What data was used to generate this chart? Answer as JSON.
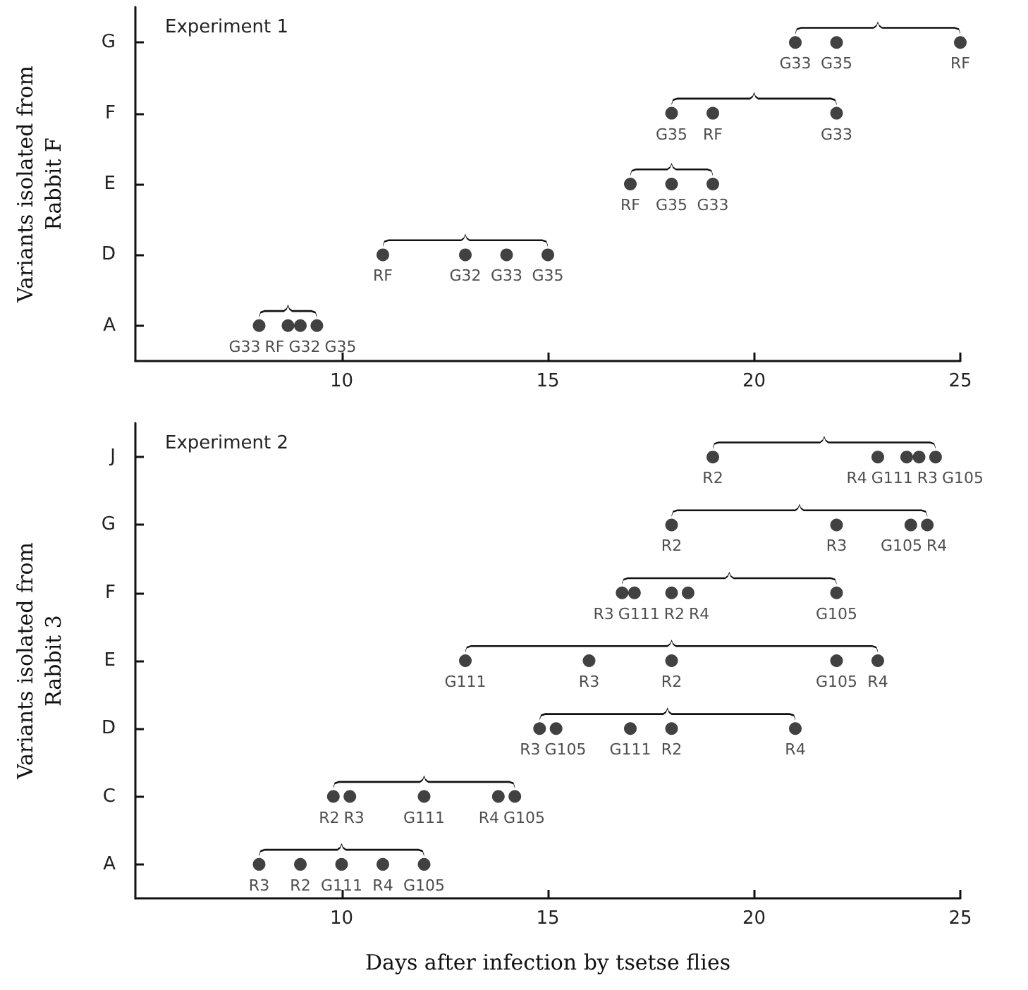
{
  "chart_data": [
    {
      "type": "scatter",
      "orientation": "horizontal",
      "ylabel": "Variants isolated from\nRabbit F",
      "annotations": [
        "Experiment 1"
      ],
      "xlim": [
        5,
        25
      ],
      "xticks": [
        10,
        15,
        20,
        25
      ],
      "marker": "circle",
      "categories": [
        "G",
        "F",
        "E",
        "D",
        "A"
      ],
      "series": [
        {
          "color": "#111111",
          "values": [
            21,
            18,
            17,
            11,
            8
          ],
          "value_labels": [
            "G33",
            "G35",
            "RF",
            "RF",
            "G33"
          ]
        },
        {
          "color": "#111111",
          "values": [
            22,
            19,
            18,
            13,
            8.7
          ],
          "value_labels": [
            "G35",
            "RF",
            "G35",
            "G32",
            "RF"
          ]
        },
        {
          "color": "#111111",
          "values": [
            25,
            22,
            19,
            14,
            9
          ],
          "value_labels": [
            "RF",
            "G33",
            "G33",
            "G33",
            "G32"
          ]
        },
        {
          "color": "#111111",
          "values": [
            null,
            null,
            null,
            15,
            9.4
          ],
          "value_labels": [
            null,
            null,
            null,
            "G35",
            "G35"
          ]
        }
      ]
    },
    {
      "type": "scatter",
      "orientation": "horizontal",
      "xlabel": "Days after infection by tsetse flies",
      "ylabel": "Variants isolated from\nRabbit 3",
      "annotations": [
        "Experiment 2"
      ],
      "xlim": [
        5,
        25
      ],
      "xticks": [
        10,
        15,
        20,
        25
      ],
      "marker": "circle",
      "categories": [
        "J",
        "G",
        "F",
        "E",
        "D",
        "C",
        "A"
      ],
      "series": [
        {
          "color": "#111111",
          "values": [
            19,
            18,
            16.8,
            13,
            14.8,
            9.8,
            8
          ],
          "value_labels": [
            "R2",
            "R2",
            "R3",
            "G111",
            "R3",
            "R2",
            "R3"
          ]
        },
        {
          "color": "#111111",
          "values": [
            23,
            22,
            17.1,
            16,
            15.2,
            10.2,
            9
          ],
          "value_labels": [
            "R4",
            "R3",
            "G111",
            "R3",
            "G105",
            "R3",
            "R2"
          ]
        },
        {
          "color": "#111111",
          "values": [
            23.7,
            23.8,
            18,
            18,
            17,
            12,
            10
          ],
          "value_labels": [
            "G111",
            "G105",
            "R2",
            "R2",
            "G111",
            "G111",
            "G111"
          ]
        },
        {
          "color": "#111111",
          "values": [
            24,
            24.2,
            18.4,
            22,
            18,
            13.8,
            11
          ],
          "value_labels": [
            "R3",
            "R4",
            "R4",
            "G105",
            "R2",
            "R4",
            "R4"
          ]
        },
        {
          "color": "#111111",
          "values": [
            24.4,
            null,
            22,
            23,
            21,
            14.2,
            12
          ],
          "value_labels": [
            "G105",
            null,
            "G105",
            "R4",
            "R4",
            "G105",
            "G105"
          ]
        }
      ]
    }
  ]
}
